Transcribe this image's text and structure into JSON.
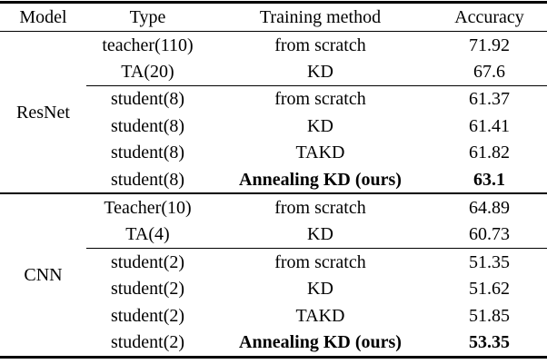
{
  "table": {
    "columns": [
      "Model",
      "Type",
      "Training method",
      "Accuracy"
    ],
    "groups": [
      {
        "model": "ResNet",
        "rows": [
          {
            "type": "teacher(110)",
            "method": "from scratch",
            "accuracy": "71.92",
            "bold": false,
            "rule_above": false
          },
          {
            "type": "TA(20)",
            "method": "KD",
            "accuracy": "67.6",
            "bold": false,
            "rule_above": false
          },
          {
            "type": "student(8)",
            "method": "from scratch",
            "accuracy": "61.37",
            "bold": false,
            "rule_above": true
          },
          {
            "type": "student(8)",
            "method": "KD",
            "accuracy": "61.41",
            "bold": false,
            "rule_above": false
          },
          {
            "type": "student(8)",
            "method": "TAKD",
            "accuracy": "61.82",
            "bold": false,
            "rule_above": false
          },
          {
            "type": "student(8)",
            "method": "Annealing KD (ours)",
            "accuracy": "63.1",
            "bold": true,
            "rule_above": false
          }
        ]
      },
      {
        "model": "CNN",
        "rows": [
          {
            "type": "Teacher(10)",
            "method": "from scratch",
            "accuracy": "64.89",
            "bold": false,
            "rule_above": false
          },
          {
            "type": "TA(4)",
            "method": "KD",
            "accuracy": "60.73",
            "bold": false,
            "rule_above": false
          },
          {
            "type": "student(2)",
            "method": "from scratch",
            "accuracy": "51.35",
            "bold": false,
            "rule_above": true
          },
          {
            "type": "student(2)",
            "method": "KD",
            "accuracy": "51.62",
            "bold": false,
            "rule_above": false
          },
          {
            "type": "student(2)",
            "method": "TAKD",
            "accuracy": "51.85",
            "bold": false,
            "rule_above": false
          },
          {
            "type": "student(2)",
            "method": "Annealing KD (ours)",
            "accuracy": "53.35",
            "bold": true,
            "rule_above": false
          }
        ]
      }
    ]
  }
}
